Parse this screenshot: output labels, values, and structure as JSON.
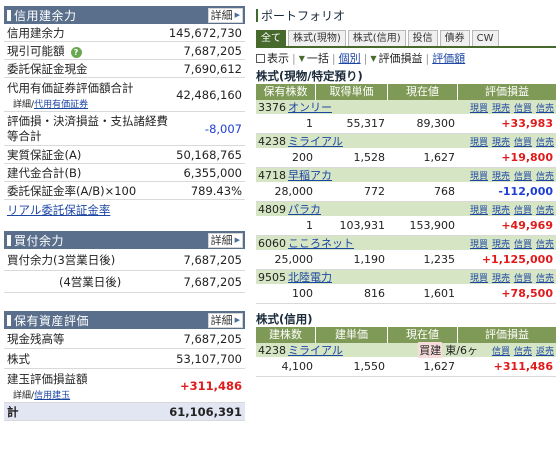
{
  "shinyo": {
    "title": "信用建余力",
    "detail_label": "詳細",
    "rows": [
      {
        "label": "信用建余力",
        "value": "145,672,730"
      },
      {
        "label": "現引可能額",
        "value": "7,687,205"
      },
      {
        "label": "委託保証金現金",
        "value": "7,690,612"
      },
      {
        "label": "代用有価証券評価額合計",
        "value": "42,486,160"
      },
      {
        "label": "評価損・決済損益・支払諸経費等合計",
        "value": "-8,007"
      },
      {
        "label": "実質保証金(A)",
        "value": "50,168,765"
      },
      {
        "label": "建代金合計(B)",
        "value": "6,355,000"
      },
      {
        "label": "委託保証金率(A/B)×100",
        "value": "789.43%"
      }
    ],
    "sublink_detail": "詳細",
    "sublink_daiyou": "代用有価証券",
    "sublink_sep": "/",
    "riaru_link": "リアル委託保証金率"
  },
  "kaitsuke": {
    "title": "買付余力",
    "detail_label": "詳細",
    "rows": [
      {
        "label": "買付余力(3営業日後)",
        "value": "7,687,205"
      },
      {
        "label": "(4営業日後)",
        "value": "7,687,205"
      }
    ]
  },
  "hoyu": {
    "title": "保有資産評価",
    "detail_label": "詳細",
    "rows": [
      {
        "label": "現金残高等",
        "value": "7,687,205"
      },
      {
        "label": "株式",
        "value": "53,107,700"
      },
      {
        "label": "建玉評価損益額",
        "value": "+311,486"
      }
    ],
    "sublink_detail": "詳細",
    "sublink_sep": "/",
    "sublink_shinyo": "信用建玉",
    "total_label": "計",
    "total_value": "61,106,391"
  },
  "portfolio": {
    "title": "ポートフォリオ",
    "tabs": [
      "全て",
      "株式(現物)",
      "株式(信用)",
      "投信",
      "債券",
      "CW"
    ],
    "toolbar": {
      "display": "表示",
      "ikkatsu": "一括",
      "kobetsu": "個別",
      "hyouka": "評価損益",
      "hyouka_link": "評価額"
    },
    "genbutsu": {
      "title": "株式(現物/特定預り)",
      "headers": [
        "保有株数",
        "取得単価",
        "現在値",
        "評価損益"
      ],
      "actions": [
        "現買",
        "現売",
        "信買",
        "信売"
      ],
      "stocks": [
        {
          "code": "3376",
          "name": "オンリー",
          "qty": "1",
          "cost": "55,317",
          "price": "89,300",
          "pl": "+33,983",
          "sign": "pos"
        },
        {
          "code": "4238",
          "name": "ミライアル",
          "qty": "200",
          "cost": "1,528",
          "price": "1,627",
          "pl": "+19,800",
          "sign": "pos"
        },
        {
          "code": "4718",
          "name": "早稲アカ",
          "qty": "28,000",
          "cost": "772",
          "price": "768",
          "pl": "-112,000",
          "sign": "neg"
        },
        {
          "code": "4809",
          "name": "パラカ",
          "qty": "1",
          "cost": "103,931",
          "price": "153,900",
          "pl": "+49,969",
          "sign": "pos"
        },
        {
          "code": "6060",
          "name": "こころネット",
          "qty": "25,000",
          "cost": "1,190",
          "price": "1,235",
          "pl": "+1,125,000",
          "sign": "pos"
        },
        {
          "code": "9505",
          "name": "北陸電力",
          "qty": "100",
          "cost": "816",
          "price": "1,601",
          "pl": "+78,500",
          "sign": "pos"
        }
      ]
    },
    "shinyo": {
      "title": "株式(信用)",
      "headers": [
        "建株数",
        "建単価",
        "現在値",
        "評価損益"
      ],
      "actions": [
        "信買",
        "信売",
        "返売"
      ],
      "stock": {
        "code": "4238",
        "name": "ミライアル",
        "tag": "買建",
        "tag2": "東/6ヶ",
        "qty": "4,100",
        "cost": "1,550",
        "price": "1,627",
        "pl": "+311,486"
      }
    }
  }
}
